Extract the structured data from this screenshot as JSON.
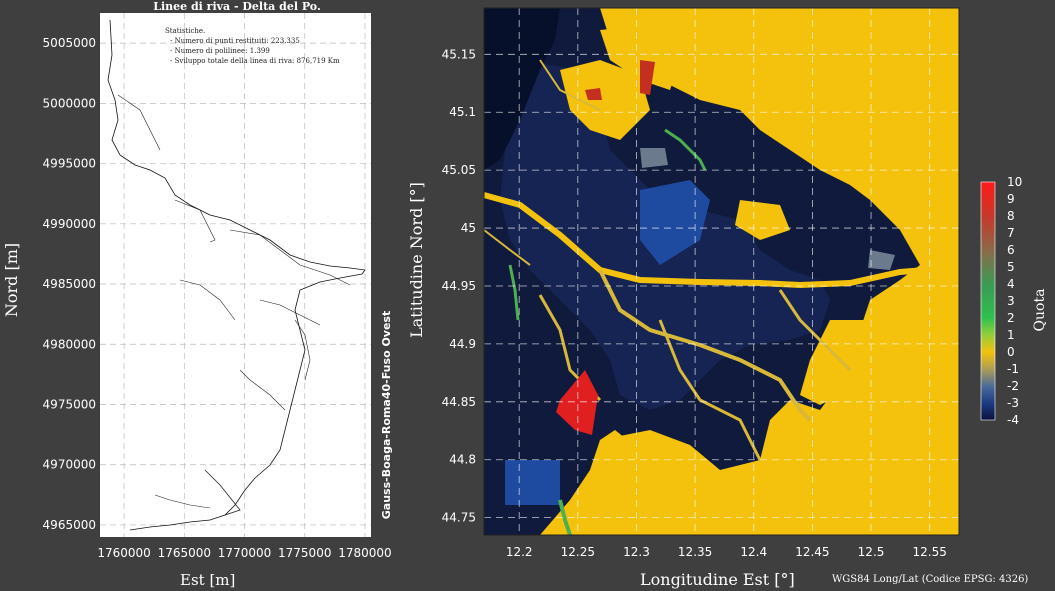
{
  "chart_data": [
    {
      "type": "line",
      "title": "Linee di riva - Delta del Po.",
      "xlabel": "Est [m]",
      "ylabel": "Nord [m]",
      "xlim": [
        1758000,
        1780500
      ],
      "ylim": [
        4964000,
        5007500
      ],
      "x_ticks": [
        "1760000",
        "1765000",
        "1770000",
        "1775000",
        "1780000"
      ],
      "y_ticks": [
        "5005000",
        "5000000",
        "4995000",
        "4990000",
        "4985000",
        "4980000",
        "4975000",
        "4970000",
        "4965000"
      ],
      "crs_label": "Gauss-Boaga-Roma40-Fuso Ovest",
      "stats_title": "Statistiche.",
      "stats": [
        "Numero di punti restituiti: 223.335",
        "Numero di polilinee:  1.399",
        "Sviluppo totale della linea di riva: 876,719 Km"
      ],
      "grid": true
    },
    {
      "type": "heatmap",
      "xlabel": "Longitudine Est [°]",
      "ylabel": "Latitudine Nord [°]",
      "xlim": [
        12.17,
        12.575
      ],
      "ylim": [
        44.735,
        45.19
      ],
      "x_ticks": [
        "12.2",
        "12.25",
        "12.3",
        "12.35",
        "12.4",
        "12.45",
        "12.5",
        "12.55"
      ],
      "y_ticks": [
        "45.15",
        "45.1",
        "45.05",
        "45",
        "44.95",
        "44.9",
        "44.85",
        "44.8",
        "44.75"
      ],
      "colorbar_label": "Quota",
      "colorbar_ticks": [
        "10",
        "9",
        "8",
        "7",
        "6",
        "5",
        "4",
        "3",
        "2",
        "1",
        "0",
        "-1",
        "-2",
        "-3",
        "-4"
      ],
      "colorbar_range": [
        -4,
        10
      ],
      "note": "WGS84 Long/Lat (Codice EPSG: 4326)",
      "grid": true
    }
  ],
  "colors": {
    "background": "#3f3f3f",
    "land": "#f4c20d",
    "water_dark": "#0b1230",
    "water_mid": "#1f3b7a",
    "lagoon": "#1e4aa0",
    "red_patch": "#e02020"
  }
}
